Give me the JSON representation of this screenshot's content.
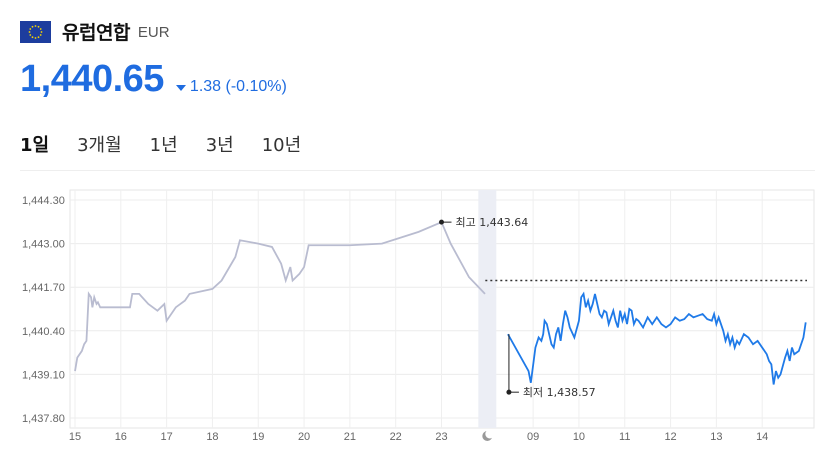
{
  "header": {
    "currency_name": "유럽연합",
    "currency_code": "EUR",
    "flag_icon": "eu-flag-icon"
  },
  "price": {
    "value": "1,440.65",
    "change": "1.38 (-0.10%)",
    "direction": "down",
    "color": "#1f6ce0"
  },
  "tabs": [
    {
      "label": "1일",
      "active": true
    },
    {
      "label": "3개월",
      "active": false
    },
    {
      "label": "1년",
      "active": false
    },
    {
      "label": "3년",
      "active": false
    },
    {
      "label": "10년",
      "active": false
    }
  ],
  "chart_data": {
    "type": "line",
    "y_ticks": [
      "1,444.30",
      "1,443.00",
      "1,441.70",
      "1,440.40",
      "1,439.10",
      "1,437.80"
    ],
    "ylim": [
      1437.8,
      1444.3
    ],
    "x_ticks": [
      "15",
      "16",
      "17",
      "18",
      "19",
      "20",
      "21",
      "22",
      "23",
      "moon-icon",
      "09",
      "10",
      "11",
      "12",
      "13",
      "14"
    ],
    "reference_level": 1441.9,
    "high": {
      "label": "최고",
      "value": "1,443.64"
    },
    "low": {
      "label": "최저",
      "value": "1,438.57"
    },
    "colors": {
      "previous": "#b9bcd0",
      "current": "#1f7ae8",
      "fill": "#d4e6fb",
      "night": "#eceef5"
    },
    "series": [
      {
        "values": [
          [
            15,
            1439.2
          ],
          [
            15.05,
            1439.6
          ],
          [
            15.15,
            1439.8
          ],
          [
            15.2,
            1440.0
          ],
          [
            15.25,
            1440.1
          ],
          [
            15.3,
            1441.5
          ],
          [
            15.35,
            1441.4
          ],
          [
            15.38,
            1441.1
          ],
          [
            15.42,
            1441.4
          ],
          [
            15.47,
            1441.2
          ],
          [
            15.5,
            1441.25
          ],
          [
            15.55,
            1441.1
          ],
          [
            15.7,
            1441.1
          ],
          [
            16,
            1441.1
          ],
          [
            16.2,
            1441.1
          ],
          [
            16.25,
            1441.5
          ],
          [
            16.4,
            1441.5
          ],
          [
            16.6,
            1441.2
          ],
          [
            16.8,
            1441.0
          ],
          [
            16.95,
            1441.2
          ],
          [
            17.0,
            1440.7
          ],
          [
            17.2,
            1441.1
          ],
          [
            17.4,
            1441.3
          ],
          [
            17.5,
            1441.5
          ],
          [
            18.0,
            1441.65
          ],
          [
            18.2,
            1441.9
          ],
          [
            18.5,
            1442.6
          ],
          [
            18.6,
            1443.1
          ],
          [
            19.0,
            1443.0
          ],
          [
            19.3,
            1442.9
          ],
          [
            19.5,
            1442.4
          ],
          [
            19.6,
            1441.9
          ],
          [
            19.7,
            1442.3
          ],
          [
            19.75,
            1441.9
          ],
          [
            19.9,
            1442.1
          ],
          [
            20.0,
            1442.3
          ],
          [
            20.1,
            1442.95
          ],
          [
            21.0,
            1442.95
          ],
          [
            21.7,
            1443.0
          ],
          [
            22.5,
            1443.35
          ],
          [
            23.0,
            1443.64
          ],
          [
            23.2,
            1443.0
          ],
          [
            23.6,
            1442.0
          ],
          [
            23.95,
            1441.5
          ]
        ]
      },
      {
        "values": [
          [
            24.45,
            1440.3
          ],
          [
            24.9,
            1439.2
          ],
          [
            24.95,
            1438.85
          ],
          [
            25.05,
            1439.9
          ],
          [
            25.12,
            1440.2
          ],
          [
            25.18,
            1440.1
          ],
          [
            25.22,
            1440.3
          ],
          [
            25.25,
            1440.7
          ],
          [
            25.3,
            1440.6
          ],
          [
            25.35,
            1440.3
          ],
          [
            25.4,
            1440.0
          ],
          [
            25.45,
            1439.9
          ],
          [
            25.5,
            1440.3
          ],
          [
            25.55,
            1440.5
          ],
          [
            25.6,
            1440.1
          ],
          [
            25.65,
            1440.6
          ],
          [
            25.7,
            1441.0
          ],
          [
            25.75,
            1440.8
          ],
          [
            25.8,
            1440.5
          ],
          [
            25.9,
            1440.2
          ],
          [
            26.0,
            1440.7
          ],
          [
            26.05,
            1441.4
          ],
          [
            26.1,
            1441.5
          ],
          [
            26.15,
            1441.1
          ],
          [
            26.2,
            1441.3
          ],
          [
            26.25,
            1441.0
          ],
          [
            26.3,
            1441.2
          ],
          [
            26.35,
            1441.5
          ],
          [
            26.4,
            1441.2
          ],
          [
            26.45,
            1440.9
          ],
          [
            26.5,
            1440.8
          ],
          [
            26.55,
            1441.0
          ],
          [
            26.6,
            1440.95
          ],
          [
            26.65,
            1440.6
          ],
          [
            26.7,
            1440.8
          ],
          [
            26.75,
            1441.0
          ],
          [
            26.8,
            1440.7
          ],
          [
            26.85,
            1440.5
          ],
          [
            26.9,
            1441.0
          ],
          [
            26.95,
            1440.7
          ],
          [
            27.0,
            1440.9
          ],
          [
            27.05,
            1440.6
          ],
          [
            27.1,
            1441.05
          ],
          [
            27.15,
            1441.0
          ],
          [
            27.2,
            1440.6
          ],
          [
            27.25,
            1440.75
          ],
          [
            27.3,
            1440.7
          ],
          [
            27.4,
            1440.5
          ],
          [
            27.5,
            1440.8
          ],
          [
            27.6,
            1440.6
          ],
          [
            27.7,
            1440.8
          ],
          [
            27.8,
            1440.6
          ],
          [
            27.9,
            1440.5
          ],
          [
            28.0,
            1440.6
          ],
          [
            28.1,
            1440.8
          ],
          [
            28.2,
            1440.7
          ],
          [
            28.3,
            1440.75
          ],
          [
            28.4,
            1440.9
          ],
          [
            28.5,
            1440.8
          ],
          [
            28.6,
            1440.85
          ],
          [
            28.7,
            1440.9
          ],
          [
            28.8,
            1440.75
          ],
          [
            28.9,
            1440.7
          ],
          [
            28.95,
            1440.9
          ],
          [
            29.0,
            1440.6
          ],
          [
            29.05,
            1440.8
          ],
          [
            29.1,
            1440.6
          ],
          [
            29.15,
            1440.4
          ],
          [
            29.2,
            1440.1
          ],
          [
            29.25,
            1440.3
          ],
          [
            29.3,
            1440.0
          ],
          [
            29.35,
            1440.2
          ],
          [
            29.4,
            1439.9
          ],
          [
            29.45,
            1440.1
          ],
          [
            29.5,
            1440.0
          ],
          [
            29.6,
            1440.3
          ],
          [
            29.7,
            1440.2
          ],
          [
            29.8,
            1440.0
          ],
          [
            29.9,
            1440.1
          ],
          [
            30.0,
            1439.9
          ],
          [
            30.05,
            1439.8
          ],
          [
            30.1,
            1439.7
          ],
          [
            30.15,
            1439.5
          ],
          [
            30.2,
            1439.4
          ],
          [
            30.25,
            1438.8
          ],
          [
            30.3,
            1439.2
          ],
          [
            30.35,
            1439.0
          ],
          [
            30.4,
            1439.1
          ],
          [
            30.5,
            1439.6
          ],
          [
            30.55,
            1439.8
          ],
          [
            30.6,
            1439.5
          ],
          [
            30.65,
            1439.9
          ],
          [
            30.7,
            1439.7
          ],
          [
            30.8,
            1439.8
          ],
          [
            30.9,
            1440.2
          ],
          [
            30.95,
            1440.65
          ]
        ]
      }
    ]
  }
}
